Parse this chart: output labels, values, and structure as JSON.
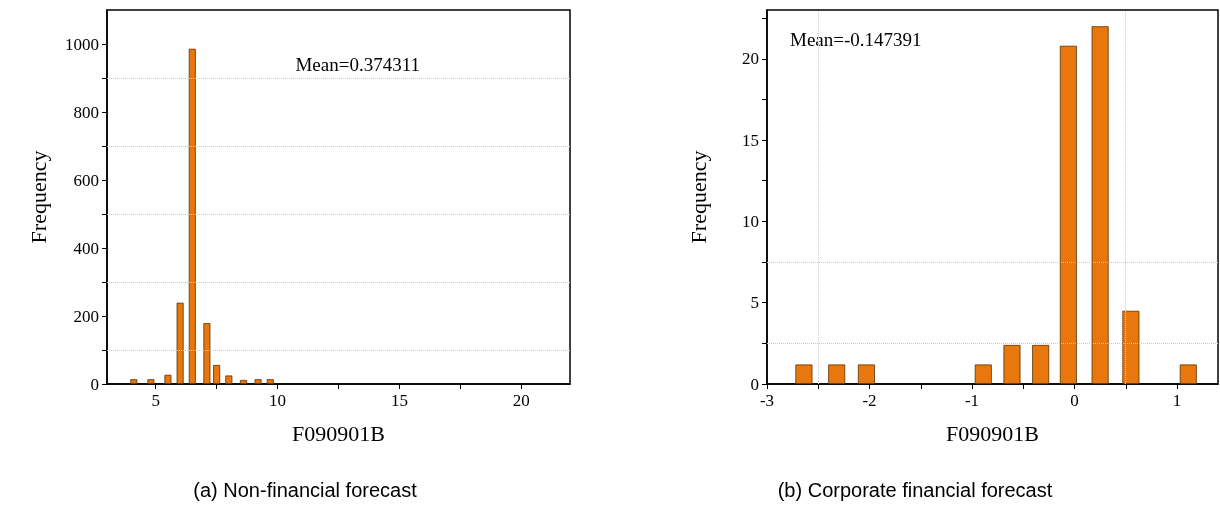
{
  "chart_data": [
    {
      "type": "bar",
      "title": "(a) Non-financial forecast",
      "xlabel": "F090901B",
      "ylabel": "Frequency",
      "annotations": [
        "Mean=0.374311"
      ],
      "x": [
        4.1,
        4.8,
        5.5,
        6.0,
        6.5,
        7.1,
        7.5,
        8.0,
        8.6,
        9.2,
        9.7
      ],
      "series": [
        {
          "color": "#e8780e",
          "values": [
            14,
            14,
            27,
            239,
            986,
            179,
            56,
            25,
            12,
            14,
            14
          ]
        }
      ],
      "xlim": [
        3,
        22
      ],
      "xticks": [
        5,
        {
          "value": 7.5,
          "label": null
        },
        10,
        {
          "value": 12.5,
          "label": null
        },
        15,
        {
          "value": 17.5,
          "label": null
        },
        20
      ],
      "ylim": [
        0,
        1100
      ],
      "yticks": [
        0,
        {
          "value": 100,
          "label": null
        },
        200,
        {
          "value": 300,
          "label": null
        },
        400,
        {
          "value": 500,
          "label": null
        },
        600,
        {
          "value": 700,
          "label": null
        },
        800,
        {
          "value": 900,
          "label": null
        },
        1000
      ],
      "ref_lines": [
        {
          "axis": "y",
          "value": 100,
          "color": "#cccccc",
          "line_style": "dotted"
        },
        {
          "axis": "y",
          "value": 300,
          "color": "#cccccc",
          "line_style": "dotted"
        },
        {
          "axis": "y",
          "value": 500,
          "color": "#cccccc",
          "line_style": "dotted"
        },
        {
          "axis": "y",
          "value": 700,
          "color": "#cccccc",
          "line_style": "dotted"
        },
        {
          "axis": "y",
          "value": 900,
          "color": "#cccccc",
          "line_style": "dotted"
        }
      ]
    },
    {
      "type": "bar",
      "title": "(b) Corporate financial forecast",
      "xlabel": "F090901B",
      "ylabel": "Frequency",
      "annotations": [
        "Mean=-0.147391"
      ],
      "x": [
        -2.64,
        -2.32,
        -2.03,
        -0.89,
        -0.61,
        -0.33,
        -0.06,
        0.25,
        0.55,
        1.11
      ],
      "series": [
        {
          "color": "#e8780e",
          "values": [
            1.2,
            1.2,
            1.2,
            1.2,
            2.4,
            2.4,
            20.8,
            22.0,
            4.5,
            1.2
          ]
        }
      ],
      "xlim": [
        -3,
        1.4
      ],
      "xticks": [
        -3,
        {
          "value": -2.5,
          "label": null
        },
        -2,
        {
          "value": -1.5,
          "label": null
        },
        -1,
        {
          "value": -0.5,
          "label": null
        },
        0,
        {
          "value": 0.5,
          "label": null
        },
        1
      ],
      "ylim": [
        0,
        23
      ],
      "yticks": [
        0,
        {
          "value": 2.5,
          "label": null
        },
        5,
        {
          "value": 7.5,
          "label": null
        },
        10,
        {
          "value": 12.5,
          "label": null
        },
        15,
        {
          "value": 17.5,
          "label": null
        },
        20,
        {
          "value": 22.5,
          "label": null
        }
      ],
      "ref_lines": [
        {
          "axis": "x",
          "value": -2.5,
          "color": "#cccccc",
          "line_style": "dotted"
        },
        {
          "axis": "x",
          "value": 0.5,
          "color": "#cccccc",
          "line_style": "dotted"
        },
        {
          "axis": "y",
          "value": 2.5,
          "color": "#cccccc",
          "line_style": "dotted"
        },
        {
          "axis": "y",
          "value": 7.5,
          "color": "#cccccc",
          "line_style": "dotted"
        }
      ]
    }
  ]
}
